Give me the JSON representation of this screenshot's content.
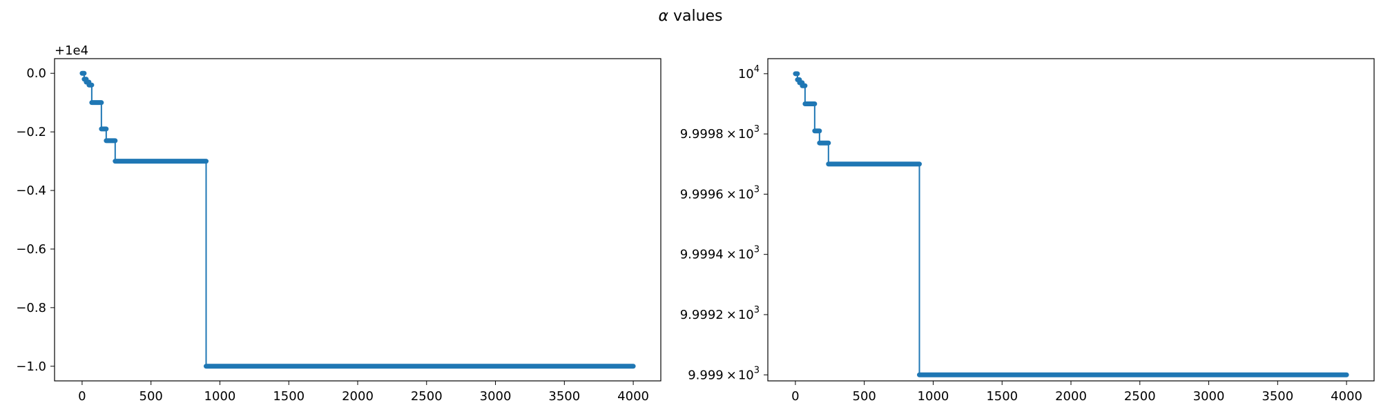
{
  "figure": {
    "suptitle_symbol": "α",
    "suptitle_text": "values"
  },
  "colors": {
    "line": "#1f77b4"
  },
  "chart_data": [
    {
      "type": "line",
      "scale": "linear",
      "offset_label": "+1e4",
      "marker": "circle",
      "xlim": [
        -200,
        4200
      ],
      "ylim": [
        -1.05,
        0.05
      ],
      "x_ticks": [
        0,
        500,
        1000,
        1500,
        2000,
        2500,
        3000,
        3500,
        4000
      ],
      "x_tick_labels": [
        "0",
        "500",
        "1000",
        "1500",
        "2000",
        "2500",
        "3000",
        "3500",
        "4000"
      ],
      "y_ticks": [
        0.0,
        -0.2,
        -0.4,
        -0.6,
        -0.8,
        -1.0
      ],
      "y_tick_labels": [
        "0.0",
        "−0.2",
        "−0.4",
        "−0.6",
        "−0.8",
        "−1.0"
      ],
      "segments": [
        {
          "x_start": 0,
          "x_end": 15,
          "y": 0.0
        },
        {
          "x_start": 15,
          "x_end": 30,
          "y": -0.02
        },
        {
          "x_start": 30,
          "x_end": 50,
          "y": -0.03
        },
        {
          "x_start": 50,
          "x_end": 70,
          "y": -0.04
        },
        {
          "x_start": 70,
          "x_end": 140,
          "y": -0.1
        },
        {
          "x_start": 140,
          "x_end": 175,
          "y": -0.19
        },
        {
          "x_start": 175,
          "x_end": 240,
          "y": -0.23
        },
        {
          "x_start": 240,
          "x_end": 900,
          "y": -0.3
        },
        {
          "x_start": 900,
          "x_end": 4000,
          "y": -1.0
        }
      ]
    },
    {
      "type": "line",
      "scale": "log",
      "marker": "circle",
      "xlim": [
        -200,
        4200
      ],
      "ylim": [
        9998.98,
        10000.05
      ],
      "x_ticks": [
        0,
        500,
        1000,
        1500,
        2000,
        2500,
        3000,
        3500,
        4000
      ],
      "x_tick_labels": [
        "0",
        "500",
        "1000",
        "1500",
        "2000",
        "2500",
        "3000",
        "3500",
        "4000"
      ],
      "y_ticks": [
        {
          "value": 10000,
          "mantissa": "",
          "exponent": "4"
        },
        {
          "value": 9999.8,
          "mantissa": "9.9998",
          "exponent": "3"
        },
        {
          "value": 9999.6,
          "mantissa": "9.9996",
          "exponent": "3"
        },
        {
          "value": 9999.4,
          "mantissa": "9.9994",
          "exponent": "3"
        },
        {
          "value": 9999.2,
          "mantissa": "9.9992",
          "exponent": "3"
        },
        {
          "value": 9999.0,
          "mantissa": "9.999",
          "exponent": "3"
        }
      ],
      "segments": [
        {
          "x_start": 0,
          "x_end": 15,
          "y": 10000.0
        },
        {
          "x_start": 15,
          "x_end": 30,
          "y": 9999.98
        },
        {
          "x_start": 30,
          "x_end": 50,
          "y": 9999.97
        },
        {
          "x_start": 50,
          "x_end": 70,
          "y": 9999.96
        },
        {
          "x_start": 70,
          "x_end": 140,
          "y": 9999.9
        },
        {
          "x_start": 140,
          "x_end": 175,
          "y": 9999.81
        },
        {
          "x_start": 175,
          "x_end": 240,
          "y": 9999.77
        },
        {
          "x_start": 240,
          "x_end": 900,
          "y": 9999.7
        },
        {
          "x_start": 900,
          "x_end": 4000,
          "y": 9999.0
        }
      ]
    }
  ]
}
